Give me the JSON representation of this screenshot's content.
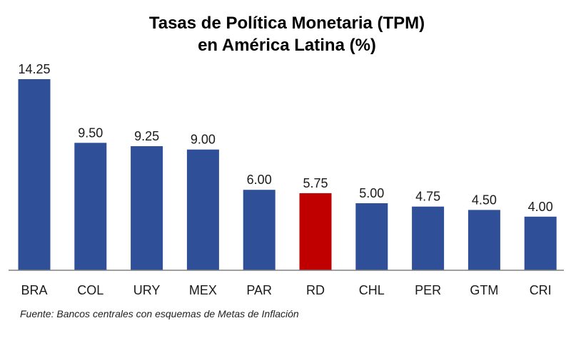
{
  "chart_data": {
    "type": "bar",
    "title_lines": [
      "Tasas de Política Monetaria (TPM)",
      "en América Latina (%)"
    ],
    "categories": [
      "BRA",
      "COL",
      "URY",
      "MEX",
      "PAR",
      "RD",
      "CHL",
      "PER",
      "GTM",
      "CRI"
    ],
    "values": [
      14.25,
      9.5,
      9.25,
      9.0,
      6.0,
      5.75,
      5.0,
      4.75,
      4.5,
      4.0
    ],
    "value_labels": [
      "14.25",
      "9.50",
      "9.25",
      "9.00",
      "6.00",
      "5.75",
      "5.00",
      "4.75",
      "4.50",
      "4.00"
    ],
    "highlight_category": "RD",
    "ylim": [
      0,
      14.25
    ],
    "xlabel": "",
    "ylabel": "",
    "grid": false,
    "legend": "none",
    "source_note": "Fuente: Bancos centrales con esquemas de Metas de Inflación"
  },
  "colors": {
    "bar": "#2F4F99",
    "highlight": "#C00000",
    "axis": "#808080"
  }
}
